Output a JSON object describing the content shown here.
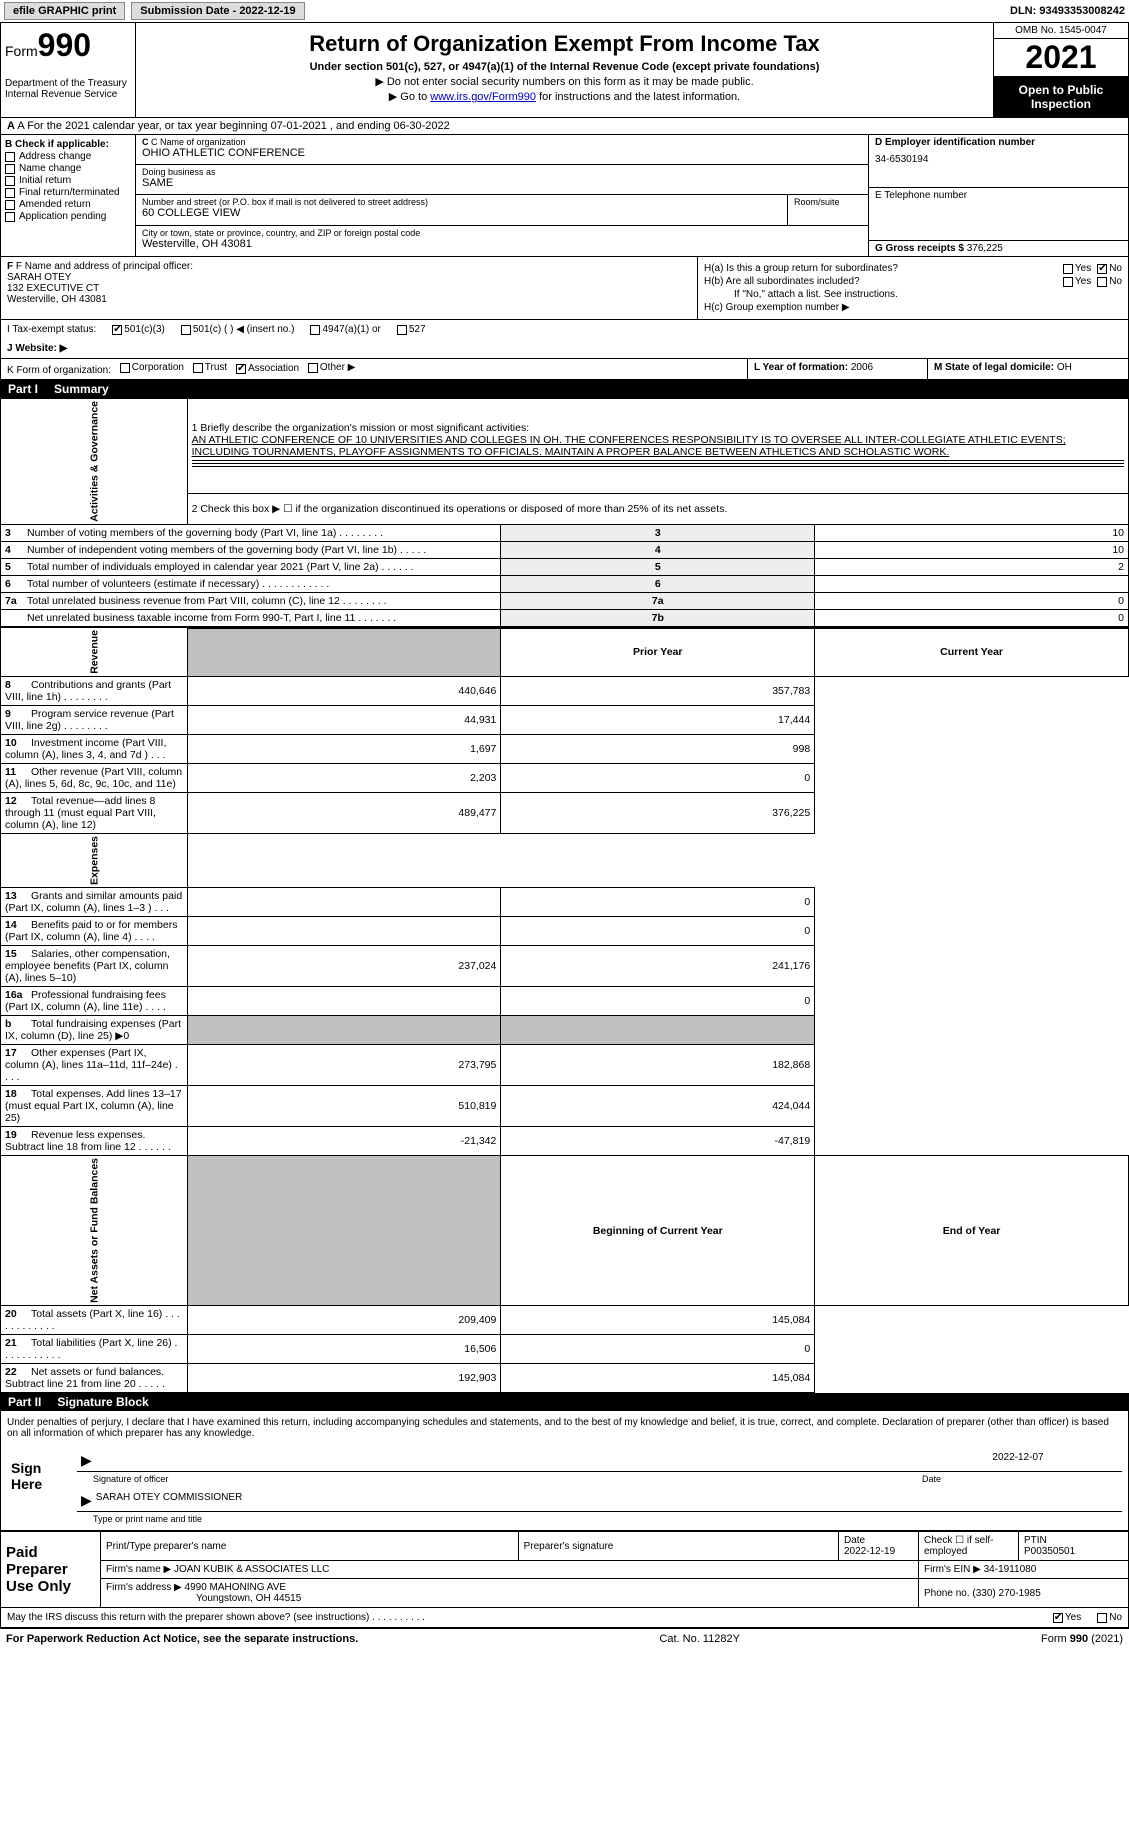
{
  "topbar": {
    "efile_label": "efile GRAPHIC print",
    "submission_label": "Submission Date - 2022-12-19",
    "dln_label": "DLN: 93493353008242"
  },
  "header": {
    "form_word": "Form",
    "form_num": "990",
    "dept": "Department of the Treasury",
    "irs": "Internal Revenue Service",
    "title": "Return of Organization Exempt From Income Tax",
    "subtitle": "Under section 501(c), 527, or 4947(a)(1) of the Internal Revenue Code (except private foundations)",
    "note1": "▶ Do not enter social security numbers on this form as it may be made public.",
    "note2_pre": "▶ Go to ",
    "note2_link": "www.irs.gov/Form990",
    "note2_post": " for instructions and the latest information.",
    "omb": "OMB No. 1545-0047",
    "year": "2021",
    "open": "Open to Public Inspection"
  },
  "row_a": "A For the 2021 calendar year, or tax year beginning 07-01-2021      , and ending 06-30-2022",
  "box_b": {
    "title": "B Check if applicable:",
    "opts": [
      "Address change",
      "Name change",
      "Initial return",
      "Final return/terminated",
      "Amended return",
      "Application pending"
    ]
  },
  "box_c": {
    "name_lbl": "C Name of organization",
    "name": "OHIO ATHLETIC CONFERENCE",
    "dba_lbl": "Doing business as",
    "dba": "SAME",
    "street_lbl": "Number and street (or P.O. box if mail is not delivered to street address)",
    "room_lbl": "Room/suite",
    "street": "60 COLLEGE VIEW",
    "city_lbl": "City or town, state or province, country, and ZIP or foreign postal code",
    "city": "Westerville, OH  43081"
  },
  "box_d": {
    "lbl": "D Employer identification number",
    "val": "34-6530194"
  },
  "box_e": {
    "lbl": "E Telephone number",
    "val": ""
  },
  "box_g": {
    "lbl": "G Gross receipts $",
    "val": "376,225"
  },
  "box_f": {
    "lbl": "F  Name and address of principal officer:",
    "name": "SARAH OTEY",
    "addr1": "132 EXECUTIVE CT",
    "addr2": "Westerville, OH  43081"
  },
  "box_h": {
    "a_q": "H(a)  Is this a group return for subordinates?",
    "b_q": "H(b)  Are all subordinates included?",
    "b_note": "If \"No,\" attach a list. See instructions.",
    "c_q": "H(c)  Group exemption number ▶",
    "yes": "Yes",
    "no": "No"
  },
  "tax_status": {
    "lbl": "I  Tax-exempt status:",
    "o1": "501(c)(3)",
    "o2": "501(c) (  ) ◀ (insert no.)",
    "o3": "4947(a)(1) or",
    "o4": "527"
  },
  "website": {
    "lbl": "J  Website: ▶",
    "val": ""
  },
  "row_k": {
    "lbl": "K Form of organization:",
    "o1": "Corporation",
    "o2": "Trust",
    "o3": "Association",
    "o4": "Other ▶"
  },
  "row_l": {
    "lbl": "L Year of formation:",
    "val": "2006"
  },
  "row_m": {
    "lbl": "M State of legal domicile:",
    "val": "OH"
  },
  "part1": {
    "hdr": "Part I",
    "title": "Summary"
  },
  "summary": {
    "q1_lbl": "1  Briefly describe the organization's mission or most significant activities:",
    "q1_text": "AN ATHLETIC CONFERENCE OF 10 UNIVERSITIES AND COLLEGES IN OH. THE CONFERENCES RESPONSIBILITY IS TO OVERSEE ALL INTER-COLLEGIATE ATHLETIC EVENTS; INCLUDING TOURNAMENTS, PLAYOFF ASSIGNMENTS TO OFFICIALS. MAINTAIN A PROPER BALANCE BETWEEN ATHLETICS AND SCHOLASTIC WORK.",
    "q2": "2   Check this box ▶ ☐  if the organization discontinued its operations or disposed of more than 25% of its net assets.",
    "rows_top": [
      {
        "n": "3",
        "d": "Number of voting members of the governing body (Part VI, line 1a)   .    .    .    .    .    .    .    .",
        "box": "3",
        "v": "10"
      },
      {
        "n": "4",
        "d": "Number of independent voting members of the governing body (Part VI, line 1b)   .    .    .    .    .",
        "box": "4",
        "v": "10"
      },
      {
        "n": "5",
        "d": "Total number of individuals employed in calendar year 2021 (Part V, line 2a)   .    .    .    .    .    .",
        "box": "5",
        "v": "2"
      },
      {
        "n": "6",
        "d": "Total number of volunteers (estimate if necessary)    .    .    .    .    .    .    .    .    .    .    .    .",
        "box": "6",
        "v": ""
      },
      {
        "n": "7a",
        "d": "Total unrelated business revenue from Part VIII, column (C), line 12  .    .    .    .    .    .    .    .",
        "box": "7a",
        "v": "0"
      },
      {
        "n": "",
        "d": "Net unrelated business taxable income from Form 990-T, Part I, line 11   .    .    .    .    .    .    .",
        "box": "7b",
        "v": "0"
      }
    ],
    "col_prior": "Prior Year",
    "col_current": "Current Year",
    "revenue_rows": [
      {
        "n": "8",
        "d": "Contributions and grants (Part VIII, line 1h)   .    .    .    .    .    .    .    .",
        "p": "440,646",
        "c": "357,783"
      },
      {
        "n": "9",
        "d": "Program service revenue (Part VIII, line 2g)  .    .    .    .    .    .    .    .",
        "p": "44,931",
        "c": "17,444"
      },
      {
        "n": "10",
        "d": "Investment income (Part VIII, column (A), lines 3, 4, and 7d )   .    .    .",
        "p": "1,697",
        "c": "998"
      },
      {
        "n": "11",
        "d": "Other revenue (Part VIII, column (A), lines 5, 6d, 8c, 9c, 10c, and 11e)",
        "p": "2,203",
        "c": "0"
      },
      {
        "n": "12",
        "d": "Total revenue—add lines 8 through 11 (must equal Part VIII, column (A), line 12)",
        "p": "489,477",
        "c": "376,225"
      }
    ],
    "expense_rows": [
      {
        "n": "13",
        "d": "Grants and similar amounts paid (Part IX, column (A), lines 1–3 )  .    .    .",
        "p": "",
        "c": "0"
      },
      {
        "n": "14",
        "d": "Benefits paid to or for members (Part IX, column (A), line 4)  .    .    .    .",
        "p": "",
        "c": "0"
      },
      {
        "n": "15",
        "d": "Salaries, other compensation, employee benefits (Part IX, column (A), lines 5–10)",
        "p": "237,024",
        "c": "241,176"
      },
      {
        "n": "16a",
        "d": "Professional fundraising fees (Part IX, column (A), line 11e)  .    .    .    .",
        "p": "",
        "c": "0"
      },
      {
        "n": "b",
        "d": "Total fundraising expenses (Part IX, column (D), line 25) ▶0",
        "p": "__shade__",
        "c": "__shade__"
      },
      {
        "n": "17",
        "d": "Other expenses (Part IX, column (A), lines 11a–11d, 11f–24e)   .    .    .    .",
        "p": "273,795",
        "c": "182,868"
      },
      {
        "n": "18",
        "d": "Total expenses. Add lines 13–17 (must equal Part IX, column (A), line 25)",
        "p": "510,819",
        "c": "424,044"
      },
      {
        "n": "19",
        "d": "Revenue less expenses. Subtract line 18 from line 12  .    .    .    .    .    .",
        "p": "-21,342",
        "c": "-47,819"
      }
    ],
    "col_begin": "Beginning of Current Year",
    "col_end": "End of Year",
    "net_rows": [
      {
        "n": "20",
        "d": "Total assets (Part X, line 16)  .    .    .    .    .    .    .    .    .    .    .    .",
        "p": "209,409",
        "c": "145,084"
      },
      {
        "n": "21",
        "d": "Total liabilities (Part X, line 26)    .    .    .    .    .    .    .    .    .    .    .",
        "p": "16,506",
        "c": "0"
      },
      {
        "n": "22",
        "d": "Net assets or fund balances. Subtract line 21 from line 20  .    .    .    .    .",
        "p": "192,903",
        "c": "145,084"
      }
    ],
    "side_ag": "Activities & Governance",
    "side_rev": "Revenue",
    "side_exp": "Expenses",
    "side_net": "Net Assets or Fund Balances"
  },
  "part2": {
    "hdr": "Part II",
    "title": "Signature Block"
  },
  "sig": {
    "perjury": "Under penalties of perjury, I declare that I have examined this return, including accompanying schedules and statements, and to the best of my knowledge and belief, it is true, correct, and complete. Declaration of preparer (other than officer) is based on all information of which preparer has any knowledge.",
    "sign_here": "Sign Here",
    "sig_officer_lbl": "Signature of officer",
    "date_lbl": "Date",
    "sig_date": "2022-12-07",
    "name_title": "SARAH OTEY COMMISSIONER",
    "name_title_lbl": "Type or print name and title"
  },
  "preparer": {
    "title": "Paid Preparer Use Only",
    "h_print": "Print/Type preparer's name",
    "h_sig": "Preparer's signature",
    "h_date": "Date",
    "date": "2022-12-19",
    "h_check": "Check ☐ if self-employed",
    "h_ptin": "PTIN",
    "ptin": "P00350501",
    "firm_name_lbl": "Firm's name    ▶",
    "firm_name": "JOAN KUBIK & ASSOCIATES LLC",
    "firm_ein_lbl": "Firm's EIN ▶",
    "firm_ein": "34-1911080",
    "firm_addr_lbl": "Firm's address ▶",
    "firm_addr1": "4990 MAHONING AVE",
    "firm_addr2": "Youngstown, OH  44515",
    "phone_lbl": "Phone no.",
    "phone": "(330) 270-1985"
  },
  "discuss": {
    "q": "May the IRS discuss this return with the preparer shown above? (see instructions)   .    .    .    .    .    .    .    .    .    .",
    "yes": "Yes",
    "no": "No"
  },
  "footer": {
    "left": "For Paperwork Reduction Act Notice, see the separate instructions.",
    "mid": "Cat. No. 11282Y",
    "right": "Form 990 (2021)"
  }
}
